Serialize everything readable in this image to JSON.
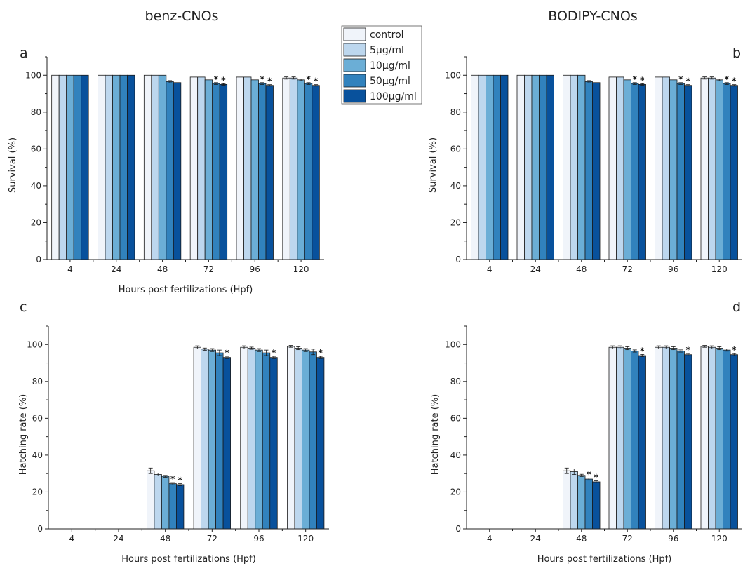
{
  "figure": {
    "col_titles": [
      "benz-CNOs",
      "BODIPY-CNOs"
    ],
    "legend": {
      "placement": "top-center",
      "entries": [
        "control",
        "5μg/ml",
        "10μg/ml",
        "50μg/ml",
        "100μg/ml"
      ]
    },
    "series_colors": [
      "#f0f4fa",
      "#bdd7ee",
      "#6baed6",
      "#3182bd",
      "#08519c"
    ]
  },
  "chart_data": [
    {
      "type": "bar",
      "panel": "a",
      "column_title": "benz-CNOs",
      "categories": [
        "4",
        "24",
        "48",
        "72",
        "96",
        "120"
      ],
      "xlabel": "Hours post fertilizations (Hpf)",
      "ylabel": "Survival (%)",
      "ylim": [
        0,
        110
      ],
      "yticks": [
        "0",
        "20",
        "40",
        "60",
        "80",
        "100"
      ],
      "grid": false,
      "series": [
        {
          "name": "control",
          "values": [
            100,
            100,
            100,
            99,
            99,
            98.5
          ],
          "errors": [
            0,
            0,
            0,
            0,
            0,
            0.6
          ],
          "stars": [
            false,
            false,
            false,
            false,
            false,
            false
          ]
        },
        {
          "name": "5μg/ml",
          "values": [
            100,
            100,
            100,
            99,
            99,
            98.5
          ],
          "errors": [
            0,
            0,
            0,
            0,
            0,
            0.6
          ],
          "stars": [
            false,
            false,
            false,
            false,
            false,
            false
          ]
        },
        {
          "name": "10μg/ml",
          "values": [
            100,
            100,
            100,
            97.5,
            97.5,
            97.5
          ],
          "errors": [
            0,
            0,
            0,
            0,
            0,
            0.5
          ],
          "stars": [
            false,
            false,
            false,
            false,
            false,
            false
          ]
        },
        {
          "name": "50μg/ml",
          "values": [
            100,
            100,
            96.5,
            95.5,
            95.5,
            95.5
          ],
          "errors": [
            0,
            0,
            0.6,
            0.5,
            0.5,
            0.5
          ],
          "stars": [
            false,
            false,
            false,
            true,
            true,
            true
          ]
        },
        {
          "name": "100μg/ml",
          "values": [
            100,
            100,
            96,
            95,
            94.5,
            94.5
          ],
          "errors": [
            0,
            0,
            0,
            0.4,
            0.4,
            0.4
          ],
          "stars": [
            false,
            false,
            false,
            true,
            true,
            true
          ]
        }
      ]
    },
    {
      "type": "bar",
      "panel": "b",
      "column_title": "BODIPY-CNOs",
      "categories": [
        "4",
        "24",
        "48",
        "72",
        "96",
        "120"
      ],
      "xlabel": "",
      "ylabel": "Survival (%)",
      "ylim": [
        0,
        110
      ],
      "yticks": [
        "0",
        "20",
        "40",
        "60",
        "80",
        "100"
      ],
      "grid": false,
      "series": [
        {
          "name": "control",
          "values": [
            100,
            100,
            100,
            99,
            99,
            98.5
          ],
          "errors": [
            0,
            0,
            0,
            0,
            0,
            0.6
          ],
          "stars": [
            false,
            false,
            false,
            false,
            false,
            false
          ]
        },
        {
          "name": "5μg/ml",
          "values": [
            100,
            100,
            100,
            99,
            99,
            98.5
          ],
          "errors": [
            0,
            0,
            0,
            0,
            0,
            0.6
          ],
          "stars": [
            false,
            false,
            false,
            false,
            false,
            false
          ]
        },
        {
          "name": "10μg/ml",
          "values": [
            100,
            100,
            100,
            97.5,
            97.5,
            97.5
          ],
          "errors": [
            0,
            0,
            0,
            0,
            0,
            0.5
          ],
          "stars": [
            false,
            false,
            false,
            false,
            false,
            false
          ]
        },
        {
          "name": "50μg/ml",
          "values": [
            100,
            100,
            96.5,
            95.5,
            95.5,
            95.5
          ],
          "errors": [
            0,
            0,
            0.6,
            0.5,
            0.5,
            0.5
          ],
          "stars": [
            false,
            false,
            false,
            true,
            true,
            true
          ]
        },
        {
          "name": "100μg/ml",
          "values": [
            100,
            100,
            96,
            95,
            94.5,
            94.5
          ],
          "errors": [
            0,
            0,
            0,
            0.4,
            0.4,
            0.4
          ],
          "stars": [
            false,
            false,
            false,
            true,
            true,
            true
          ]
        }
      ]
    },
    {
      "type": "bar",
      "panel": "c",
      "categories": [
        "4",
        "24",
        "48",
        "72",
        "96",
        "120"
      ],
      "xlabel": "Hours post fertilizations (Hpf)",
      "ylabel": "Hatching rate (%)",
      "ylim": [
        0,
        110
      ],
      "yticks": [
        "0",
        "20",
        "40",
        "60",
        "80",
        "100"
      ],
      "grid": false,
      "series": [
        {
          "name": "control",
          "values": [
            0,
            0,
            31.5,
            98.5,
            98.5,
            99
          ],
          "errors": [
            0,
            0,
            1.5,
            0.8,
            0.8,
            0.5
          ],
          "stars": [
            false,
            false,
            false,
            false,
            false,
            false
          ]
        },
        {
          "name": "5μg/ml",
          "values": [
            0,
            0,
            29.5,
            97.5,
            98,
            98
          ],
          "errors": [
            0,
            0,
            0.8,
            0.6,
            0.6,
            0.8
          ],
          "stars": [
            false,
            false,
            false,
            false,
            false,
            false
          ]
        },
        {
          "name": "10μg/ml",
          "values": [
            0,
            0,
            28.5,
            97,
            97,
            97
          ],
          "errors": [
            0,
            0,
            0.5,
            0.8,
            0.8,
            0.8
          ],
          "stars": [
            false,
            false,
            false,
            false,
            false,
            false
          ]
        },
        {
          "name": "50μg/ml",
          "values": [
            0,
            0,
            24.5,
            95.5,
            95.5,
            96
          ],
          "errors": [
            0,
            0,
            0.6,
            1.5,
            1.5,
            1.5
          ],
          "stars": [
            false,
            false,
            true,
            false,
            false,
            false
          ]
        },
        {
          "name": "100μg/ml",
          "values": [
            0,
            0,
            24,
            93,
            93,
            93
          ],
          "errors": [
            0,
            0,
            0.6,
            0.6,
            0.6,
            0.6
          ],
          "stars": [
            false,
            false,
            true,
            true,
            true,
            true
          ]
        }
      ]
    },
    {
      "type": "bar",
      "panel": "d",
      "categories": [
        "4",
        "24",
        "48",
        "72",
        "96",
        "120"
      ],
      "xlabel": "Hours post fertilizations (Hpf)",
      "ylabel": "Hatching rate (%)",
      "ylim": [
        0,
        110
      ],
      "yticks": [
        "0",
        "20",
        "40",
        "60",
        "80",
        "100"
      ],
      "grid": false,
      "series": [
        {
          "name": "control",
          "values": [
            0,
            0,
            31.5,
            98.5,
            98.5,
            99
          ],
          "errors": [
            0,
            0,
            1.5,
            0.8,
            0.8,
            0.5
          ],
          "stars": [
            false,
            false,
            false,
            false,
            false,
            false
          ]
        },
        {
          "name": "5μg/ml",
          "values": [
            0,
            0,
            31,
            98.5,
            98.5,
            98.5
          ],
          "errors": [
            0,
            0,
            1.5,
            0.8,
            0.8,
            0.8
          ],
          "stars": [
            false,
            false,
            false,
            false,
            false,
            false
          ]
        },
        {
          "name": "10μg/ml",
          "values": [
            0,
            0,
            29,
            98,
            98,
            98
          ],
          "errors": [
            0,
            0,
            0.6,
            0.8,
            0.8,
            0.8
          ],
          "stars": [
            false,
            false,
            false,
            false,
            false,
            false
          ]
        },
        {
          "name": "50μg/ml",
          "values": [
            0,
            0,
            27,
            96.5,
            96.5,
            97
          ],
          "errors": [
            0,
            0,
            0.6,
            0.6,
            0.6,
            0.6
          ],
          "stars": [
            false,
            false,
            true,
            false,
            false,
            false
          ]
        },
        {
          "name": "100μg/ml",
          "values": [
            0,
            0,
            25.5,
            94,
            94.5,
            94.5
          ],
          "errors": [
            0,
            0,
            0.6,
            0.6,
            0.6,
            0.6
          ],
          "stars": [
            false,
            false,
            true,
            true,
            true,
            true
          ]
        }
      ]
    }
  ]
}
